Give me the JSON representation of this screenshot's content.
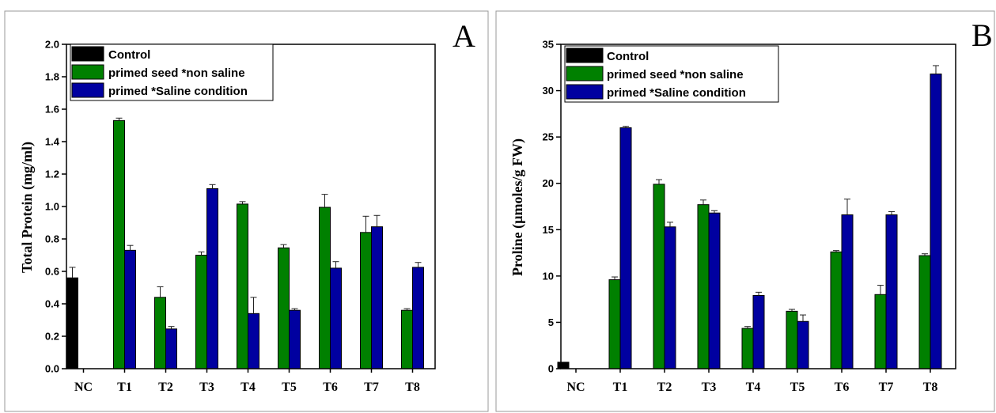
{
  "chart_data": [
    {
      "type": "bar",
      "panel_label": "A",
      "ylabel": "Total Protein (mg/ml)",
      "xlabel": "",
      "categories": [
        "NC",
        "T1",
        "T2",
        "T3",
        "T4",
        "T5",
        "T6",
        "T7",
        "T8"
      ],
      "ylim": [
        0,
        2.0
      ],
      "yticks": [
        "0.0",
        "0.2",
        "0.4",
        "0.6",
        "0.8",
        "1.0",
        "1.2",
        "1.4",
        "1.6",
        "1.8",
        "2.0"
      ],
      "legend_position": "top-left",
      "series": [
        {
          "name": "Control",
          "color": "#000000",
          "values": [
            0.56,
            null,
            null,
            null,
            null,
            null,
            null,
            null,
            null
          ],
          "errors": [
            0.065,
            null,
            null,
            null,
            null,
            null,
            null,
            null,
            null
          ]
        },
        {
          "name": "primed seed *non saline",
          "color": "#008000",
          "values": [
            null,
            1.53,
            0.44,
            0.7,
            1.015,
            0.745,
            0.995,
            0.84,
            0.36
          ],
          "errors": [
            null,
            0.015,
            0.065,
            0.02,
            0.015,
            0.02,
            0.08,
            0.1,
            0.01
          ]
        },
        {
          "name": "primed *Saline condition",
          "color": "#0000A0",
          "values": [
            null,
            0.73,
            0.245,
            1.11,
            0.34,
            0.36,
            0.62,
            0.875,
            0.625
          ],
          "errors": [
            null,
            0.03,
            0.015,
            0.025,
            0.1,
            0.01,
            0.04,
            0.07,
            0.03
          ]
        }
      ]
    },
    {
      "type": "bar",
      "panel_label": "B",
      "ylabel": "Proline (µmoles/g FW)",
      "xlabel": "",
      "categories": [
        "NC",
        "T1",
        "T2",
        "T3",
        "T4",
        "T5",
        "T6",
        "T7",
        "T8"
      ],
      "ylim": [
        0,
        35
      ],
      "yticks": [
        "0",
        "5",
        "10",
        "15",
        "20",
        "25",
        "30",
        "35"
      ],
      "legend_position": "top-left",
      "series": [
        {
          "name": "Control",
          "color": "#000000",
          "values": [
            0.7,
            null,
            null,
            null,
            null,
            null,
            null,
            null,
            null
          ],
          "errors": [
            0,
            null,
            null,
            null,
            null,
            null,
            null,
            null,
            null
          ]
        },
        {
          "name": "primed seed *non saline",
          "color": "#008000",
          "values": [
            null,
            9.6,
            19.9,
            17.7,
            4.35,
            6.2,
            12.6,
            8.0,
            12.2
          ],
          "errors": [
            null,
            0.3,
            0.5,
            0.5,
            0.2,
            0.2,
            0.15,
            1.0,
            0.2
          ]
        },
        {
          "name": "primed *Saline condition",
          "color": "#0000A0",
          "values": [
            null,
            26.0,
            15.3,
            16.8,
            7.9,
            5.1,
            16.6,
            16.6,
            31.8
          ],
          "errors": [
            null,
            0.15,
            0.5,
            0.25,
            0.35,
            0.7,
            1.7,
            0.35,
            0.9
          ]
        }
      ]
    }
  ]
}
